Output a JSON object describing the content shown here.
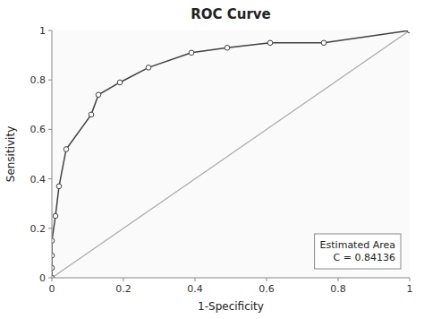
{
  "chart_data": {
    "type": "line",
    "title": "ROC Curve",
    "x_label": "1-Specificity",
    "y_label": "Sensitivity",
    "series": [
      {
        "x": [
          0.0,
          0.0,
          0.0,
          0.0,
          0.01,
          0.02,
          0.04,
          0.11,
          0.13,
          0.19,
          0.27,
          0.39,
          0.49,
          0.61,
          0.76,
          1.0
        ],
        "values": [
          0.0,
          0.04,
          0.09,
          0.15,
          0.25,
          0.37,
          0.52,
          0.66,
          0.74,
          0.79,
          0.85,
          0.91,
          0.93,
          0.95,
          0.95,
          1.0
        ],
        "color": "#404040",
        "marker": "circle"
      },
      {
        "x": [
          0.0,
          1.0
        ],
        "values": [
          0.0,
          1.0
        ],
        "color": "#aaaaaa"
      }
    ],
    "annotation": "Estimated Area\nC = 0.84136",
    "xlim": [
      0,
      1
    ],
    "ylim": [
      0,
      1
    ],
    "xticks": [
      0,
      0.2,
      0.4,
      0.6,
      0.8,
      1
    ],
    "yticks": [
      0,
      0.2,
      0.4,
      0.6,
      0.8,
      1
    ],
    "grid": false
  }
}
